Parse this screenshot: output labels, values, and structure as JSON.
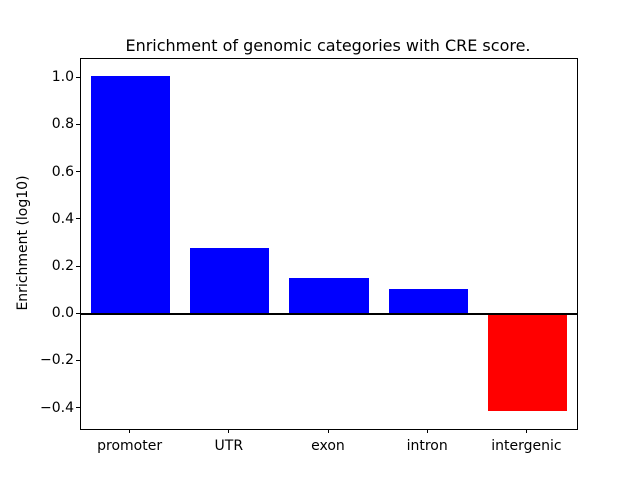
{
  "chart_data": {
    "type": "bar",
    "title": "Enrichment of genomic categories with CRE score.",
    "xlabel": "",
    "ylabel": "Enrichment (log10)",
    "categories": [
      "promoter",
      "UTR",
      "exon",
      "intron",
      "intergenic"
    ],
    "values": [
      1.01,
      0.28,
      0.155,
      0.105,
      -0.41
    ],
    "bar_colors": [
      "#0000ff",
      "#0000ff",
      "#0000ff",
      "#0000ff",
      "#ff0000"
    ],
    "positive_color": "#0000ff",
    "negative_color": "#ff0000",
    "ylim": [
      -0.486,
      1.081
    ],
    "yticks": [
      1.0,
      0.8,
      0.6,
      0.4,
      0.2,
      0.0,
      -0.2,
      -0.4
    ],
    "ytick_labels": [
      "1.0",
      "0.8",
      "0.6",
      "0.4",
      "0.2",
      "0.0",
      "−0.2",
      "−0.4"
    ],
    "zero_line": true,
    "grid": false,
    "legend_position": "none",
    "bar_width_fraction": 0.8
  },
  "figure": {
    "background": "#ffffff",
    "frame_color": "#000000",
    "text_color": "#000000"
  }
}
